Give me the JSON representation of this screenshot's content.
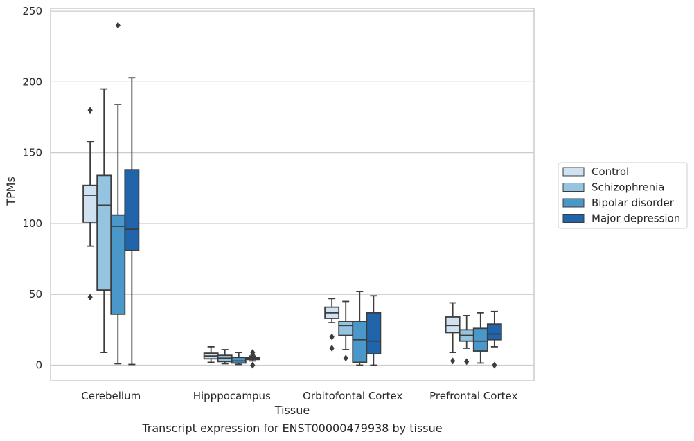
{
  "chart_data": {
    "type": "box",
    "caption": "Transcript expression for ENST00000479938 by tissue",
    "xlabel": "Tissue",
    "ylabel": "TPMs",
    "ylim": [
      -11,
      252
    ],
    "yticks": [
      0,
      50,
      100,
      150,
      200,
      250
    ],
    "grid": "horizontal",
    "legend_position": "right",
    "categories": [
      "Cerebellum",
      "Hipppocampus",
      "Orbitofontal Cortex",
      "Prefrontal Cortex"
    ],
    "series": [
      {
        "name": "Control",
        "color": "#d0e1f2",
        "boxes": [
          {
            "whisker_low": 84,
            "q1": 101,
            "median": 120,
            "q3": 127,
            "whisker_high": 158,
            "outliers": [
              180,
              48
            ]
          },
          {
            "whisker_low": 2,
            "q1": 4.5,
            "median": 6.5,
            "q3": 8.5,
            "whisker_high": 13,
            "outliers": []
          },
          {
            "whisker_low": 30,
            "q1": 33,
            "median": 37,
            "q3": 41,
            "whisker_high": 47,
            "outliers": [
              20,
              12
            ]
          },
          {
            "whisker_low": 9,
            "q1": 23,
            "median": 28,
            "q3": 34,
            "whisker_high": 44,
            "outliers": [
              3
            ]
          }
        ]
      },
      {
        "name": "Schizophrenia",
        "color": "#94c4df",
        "boxes": [
          {
            "whisker_low": 9,
            "q1": 53,
            "median": 113,
            "q3": 134,
            "whisker_high": 195,
            "outliers": []
          },
          {
            "whisker_low": 1,
            "q1": 2.5,
            "median": 5,
            "q3": 7,
            "whisker_high": 11,
            "outliers": []
          },
          {
            "whisker_low": 11,
            "q1": 21,
            "median": 28,
            "q3": 31,
            "whisker_high": 45,
            "outliers": [
              5
            ]
          },
          {
            "whisker_low": 12,
            "q1": 17,
            "median": 21,
            "q3": 25,
            "whisker_high": 35,
            "outliers": [
              2.5
            ]
          }
        ]
      },
      {
        "name": "Bipolar disorder",
        "color": "#4a98c9",
        "boxes": [
          {
            "whisker_low": 1,
            "q1": 36,
            "median": 98,
            "q3": 106,
            "whisker_high": 184,
            "outliers": [
              240
            ]
          },
          {
            "whisker_low": 0.5,
            "q1": 1.5,
            "median": 3,
            "q3": 5.5,
            "whisker_high": 9,
            "outliers": []
          },
          {
            "whisker_low": 0,
            "q1": 2,
            "median": 18,
            "q3": 31,
            "whisker_high": 52,
            "outliers": []
          },
          {
            "whisker_low": 1.5,
            "q1": 10,
            "median": 17,
            "q3": 26,
            "whisker_high": 37,
            "outliers": []
          }
        ]
      },
      {
        "name": "Major depression",
        "color": "#2064ab",
        "boxes": [
          {
            "whisker_low": 0.5,
            "q1": 81,
            "median": 96,
            "q3": 138,
            "whisker_high": 203,
            "outliers": []
          },
          {
            "whisker_low": 3,
            "q1": 4,
            "median": 5,
            "q3": 5.5,
            "whisker_high": 6.5,
            "outliers": [
              9,
              7.5,
              0
            ]
          },
          {
            "whisker_low": 0,
            "q1": 8,
            "median": 17,
            "q3": 37,
            "whisker_high": 49,
            "outliers": []
          },
          {
            "whisker_low": 13,
            "q1": 18,
            "median": 22,
            "q3": 29,
            "whisker_high": 38,
            "outliers": [
              0
            ]
          }
        ]
      }
    ]
  }
}
